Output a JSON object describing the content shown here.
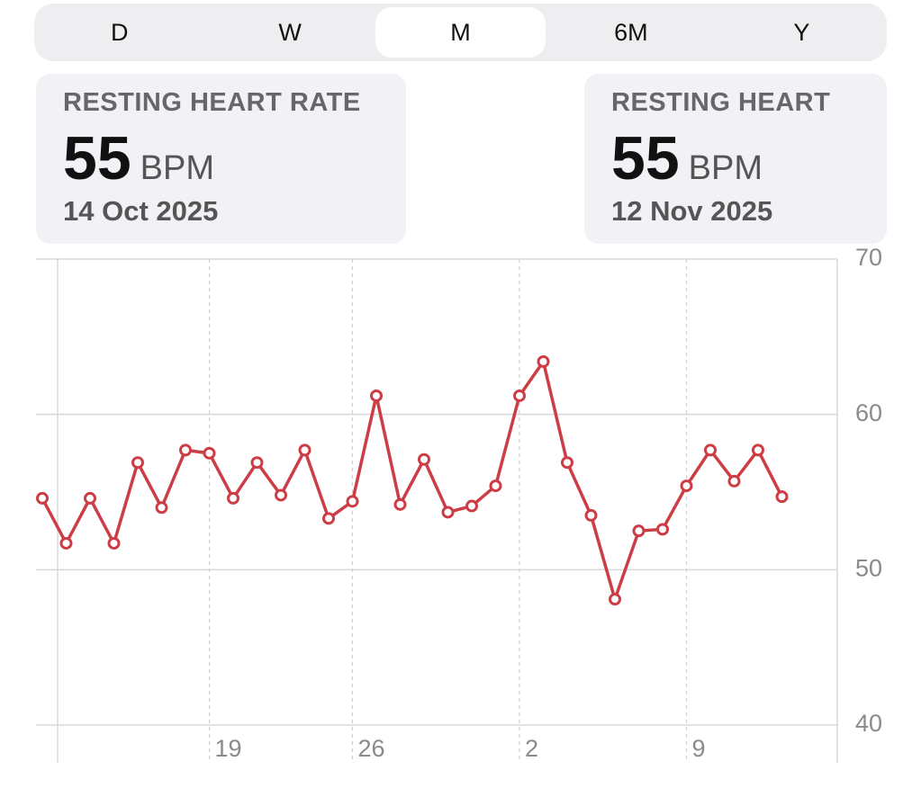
{
  "tabs": [
    "D",
    "W",
    "M",
    "6M",
    "Y"
  ],
  "cards": [
    {
      "title": "RESTING HEART RATE",
      "value": 55,
      "unit": "BPM",
      "date": "14 Oct 2025"
    },
    {
      "title": "RESTING HEART",
      "value": 55,
      "unit": "BPM",
      "date": "12 Nov 2025"
    }
  ],
  "chart_data": {
    "type": "line",
    "color": "#cc3d45",
    "categories": [
      null,
      null,
      null,
      null,
      null,
      null,
      null,
      "19",
      null,
      null,
      null,
      null,
      null,
      "26",
      null,
      null,
      null,
      null,
      null,
      null,
      "2",
      null,
      null,
      null,
      null,
      null,
      null,
      "9",
      null,
      null,
      null,
      null
    ],
    "values": [
      54.6,
      51.7,
      54.6,
      51.7,
      56.9,
      54.0,
      57.7,
      57.5,
      54.6,
      56.9,
      54.8,
      57.7,
      53.3,
      54.4,
      61.2,
      54.2,
      57.1,
      53.7,
      54.1,
      55.4,
      61.2,
      63.4,
      56.9,
      53.5,
      48.1,
      52.5,
      52.6,
      55.4,
      57.7,
      55.7,
      57.7,
      54.7
    ],
    "ylim": [
      40,
      70
    ],
    "yticks": [
      40,
      50,
      60,
      70
    ],
    "grid": true
  }
}
